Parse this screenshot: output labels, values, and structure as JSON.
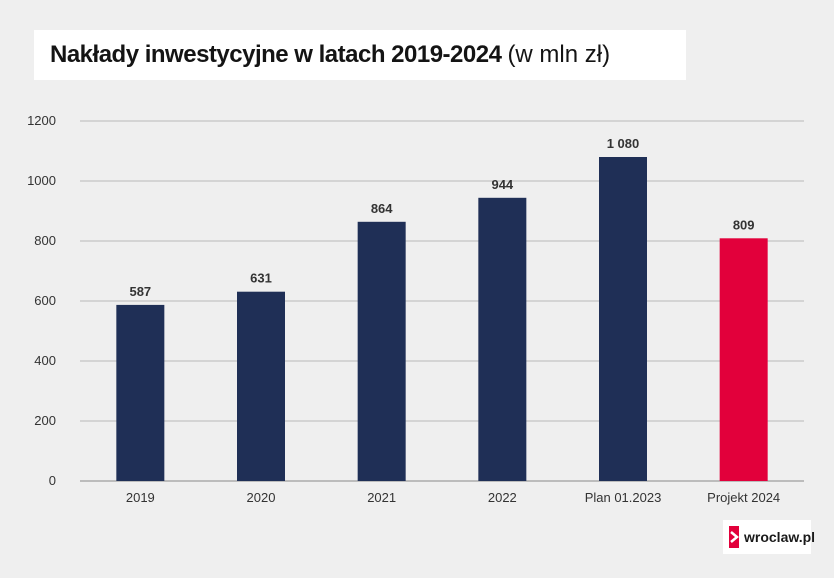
{
  "title": {
    "bold": "Nakłady inwestycyjne w latach 2019-2024",
    "light": "(w mln zł)"
  },
  "chart_data": {
    "type": "bar",
    "categories": [
      "2019",
      "2020",
      "2021",
      "2022",
      "Plan 01.2023",
      "Projekt 2024"
    ],
    "values": [
      587,
      631,
      864,
      944,
      1080,
      809
    ],
    "value_labels": [
      "587",
      "631",
      "864",
      "944",
      "1 080",
      "809"
    ],
    "bar_colors": [
      "#1f2f56",
      "#1f2f56",
      "#1f2f56",
      "#1f2f56",
      "#1f2f56",
      "#e2003b"
    ],
    "ylim": [
      0,
      1200
    ],
    "yticks": [
      "0",
      "200",
      "400",
      "600",
      "800",
      "1000",
      "1200"
    ],
    "grid": true,
    "legend": "none"
  },
  "logo": {
    "text": "wroclaw.pl",
    "icon": "chevron-right-icon"
  }
}
